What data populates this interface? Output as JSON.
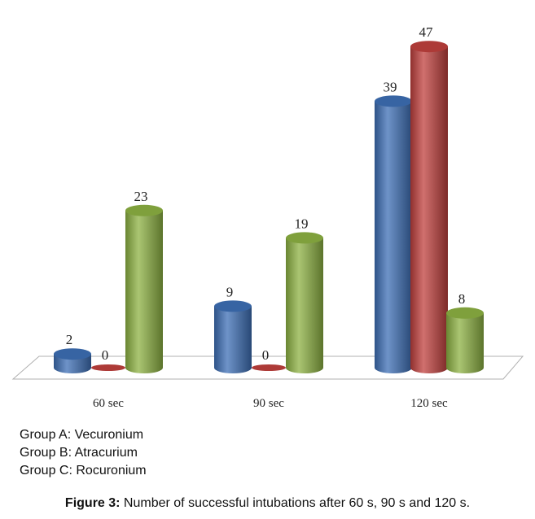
{
  "chart_data": {
    "type": "bar",
    "categories": [
      "60 sec",
      "90 sec",
      "120 sec"
    ],
    "series": [
      {
        "values": [
          2,
          9,
          39
        ]
      },
      {
        "values": [
          0,
          0,
          47
        ]
      },
      {
        "values": [
          23,
          19,
          8
        ]
      }
    ],
    "colors": [
      "#3d6fb5",
      "#c0403d",
      "#8db243"
    ],
    "ylim": [
      0,
      50
    ],
    "grid": false,
    "title": "",
    "xlabel": "",
    "ylabel": ""
  },
  "legend_lines": [
    "Group A: Vecuronium",
    "Group B: Atracurium",
    "Group C: Rocuronium"
  ],
  "caption": {
    "figure_label": "Figure 3:",
    "text": " Number of successful intubations after 60 s, 90 s and 120 s."
  }
}
